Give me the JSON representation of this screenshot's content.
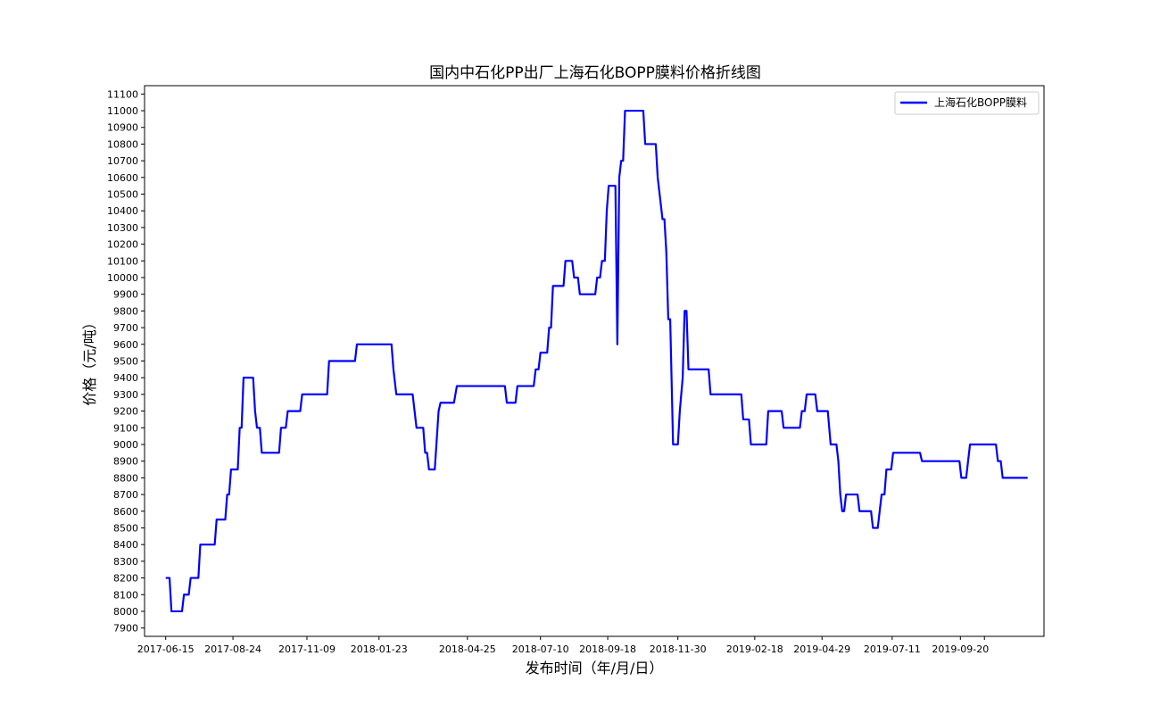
{
  "chart_data": {
    "type": "line",
    "title": "国内中石化PP出厂上海石化BOPP膜料价格折线图",
    "xlabel": "发布时间（年/月/日）",
    "ylabel": "价格（元/吨）",
    "x_ticks": [
      "2017-06-15",
      "2017-08-24",
      "2017-11-09",
      "2018-01-23",
      "2018-04-25",
      "2018-07-10",
      "2018-09-18",
      "2018-11-30",
      "2019-02-18",
      "2019-04-29",
      "2019-07-11",
      "2019-09-20",
      ""
    ],
    "xlim": [
      "2017-05-24",
      "2019-12-16"
    ],
    "ylim": [
      7850,
      11150
    ],
    "y_ticks": [
      7900,
      8000,
      8100,
      8200,
      8300,
      8400,
      8500,
      8600,
      8700,
      8800,
      8900,
      9000,
      9100,
      9200,
      9300,
      9400,
      9500,
      9600,
      9700,
      9800,
      9900,
      10000,
      10100,
      10200,
      10300,
      10400,
      10500,
      10600,
      10700,
      10800,
      10900,
      11000,
      11100
    ],
    "grid": false,
    "legend_position": "upper right",
    "series": [
      {
        "name": "上海石化BOPP膜料",
        "color": "#0000ff",
        "points": [
          [
            "2017-06-15",
            8200
          ],
          [
            "2017-06-19",
            8200
          ],
          [
            "2017-06-21",
            8000
          ],
          [
            "2017-07-02",
            8000
          ],
          [
            "2017-07-04",
            8100
          ],
          [
            "2017-07-09",
            8100
          ],
          [
            "2017-07-11",
            8200
          ],
          [
            "2017-07-19",
            8200
          ],
          [
            "2017-07-21",
            8400
          ],
          [
            "2017-08-05",
            8400
          ],
          [
            "2017-08-07",
            8550
          ],
          [
            "2017-08-16",
            8550
          ],
          [
            "2017-08-18",
            8700
          ],
          [
            "2017-08-20",
            8700
          ],
          [
            "2017-08-22",
            8850
          ],
          [
            "2017-08-29",
            8850
          ],
          [
            "2017-08-31",
            9100
          ],
          [
            "2017-09-02",
            9100
          ],
          [
            "2017-09-04",
            9400
          ],
          [
            "2017-09-14",
            9400
          ],
          [
            "2017-09-16",
            9200
          ],
          [
            "2017-09-18",
            9100
          ],
          [
            "2017-09-21",
            9100
          ],
          [
            "2017-09-23",
            8950
          ],
          [
            "2017-10-11",
            8950
          ],
          [
            "2017-10-13",
            9100
          ],
          [
            "2017-10-18",
            9100
          ],
          [
            "2017-10-20",
            9200
          ],
          [
            "2017-11-02",
            9200
          ],
          [
            "2017-11-04",
            9300
          ],
          [
            "2017-11-30",
            9300
          ],
          [
            "2017-12-02",
            9500
          ],
          [
            "2017-12-29",
            9500
          ],
          [
            "2017-12-31",
            9600
          ],
          [
            "2018-02-05",
            9600
          ],
          [
            "2018-02-07",
            9450
          ],
          [
            "2018-02-10",
            9300
          ],
          [
            "2018-02-27",
            9300
          ],
          [
            "2018-03-03",
            9100
          ],
          [
            "2018-03-10",
            9100
          ],
          [
            "2018-03-12",
            8950
          ],
          [
            "2018-03-14",
            8950
          ],
          [
            "2018-03-16",
            8850
          ],
          [
            "2018-03-22",
            8850
          ],
          [
            "2018-03-26",
            9200
          ],
          [
            "2018-03-28",
            9250
          ],
          [
            "2018-04-11",
            9250
          ],
          [
            "2018-04-14",
            9350
          ],
          [
            "2018-06-03",
            9350
          ],
          [
            "2018-06-05",
            9250
          ],
          [
            "2018-06-14",
            9250
          ],
          [
            "2018-06-16",
            9350
          ],
          [
            "2018-07-03",
            9350
          ],
          [
            "2018-07-05",
            9450
          ],
          [
            "2018-07-08",
            9450
          ],
          [
            "2018-07-10",
            9550
          ],
          [
            "2018-07-17",
            9550
          ],
          [
            "2018-07-19",
            9700
          ],
          [
            "2018-07-21",
            9700
          ],
          [
            "2018-07-23",
            9950
          ],
          [
            "2018-08-03",
            9950
          ],
          [
            "2018-08-05",
            10100
          ],
          [
            "2018-08-12",
            10100
          ],
          [
            "2018-08-14",
            10000
          ],
          [
            "2018-08-18",
            10000
          ],
          [
            "2018-08-20",
            9900
          ],
          [
            "2018-09-05",
            9900
          ],
          [
            "2018-09-07",
            10000
          ],
          [
            "2018-09-10",
            10000
          ],
          [
            "2018-09-12",
            10100
          ],
          [
            "2018-09-15",
            10100
          ],
          [
            "2018-09-17",
            10400
          ],
          [
            "2018-09-19",
            10550
          ],
          [
            "2018-09-26",
            10550
          ],
          [
            "2018-09-28",
            9600
          ],
          [
            "2018-09-30",
            10600
          ],
          [
            "2018-10-02",
            10700
          ],
          [
            "2018-10-04",
            10700
          ],
          [
            "2018-10-06",
            11000
          ],
          [
            "2018-10-25",
            11000
          ],
          [
            "2018-10-27",
            10800
          ],
          [
            "2018-11-07",
            10800
          ],
          [
            "2018-11-09",
            10600
          ],
          [
            "2018-11-11",
            10500
          ],
          [
            "2018-11-14",
            10350
          ],
          [
            "2018-11-16",
            10350
          ],
          [
            "2018-11-18",
            10150
          ],
          [
            "2018-11-20",
            9750
          ],
          [
            "2018-11-22",
            9750
          ],
          [
            "2018-11-25",
            9000
          ],
          [
            "2018-11-30",
            9000
          ],
          [
            "2018-12-02",
            9200
          ],
          [
            "2018-12-05",
            9400
          ],
          [
            "2018-12-07",
            9800
          ],
          [
            "2018-12-09",
            9800
          ],
          [
            "2018-12-11",
            9450
          ],
          [
            "2019-01-01",
            9450
          ],
          [
            "2019-01-03",
            9300
          ],
          [
            "2019-02-04",
            9300
          ],
          [
            "2019-02-06",
            9150
          ],
          [
            "2019-02-12",
            9150
          ],
          [
            "2019-02-14",
            9000
          ],
          [
            "2019-03-02",
            9000
          ],
          [
            "2019-03-04",
            9200
          ],
          [
            "2019-03-18",
            9200
          ],
          [
            "2019-03-20",
            9100
          ],
          [
            "2019-04-06",
            9100
          ],
          [
            "2019-04-08",
            9200
          ],
          [
            "2019-04-11",
            9200
          ],
          [
            "2019-04-13",
            9300
          ],
          [
            "2019-04-22",
            9300
          ],
          [
            "2019-04-24",
            9200
          ],
          [
            "2019-05-05",
            9200
          ],
          [
            "2019-05-08",
            9000
          ],
          [
            "2019-05-14",
            9000
          ],
          [
            "2019-05-16",
            8900
          ],
          [
            "2019-05-18",
            8700
          ],
          [
            "2019-05-20",
            8600
          ],
          [
            "2019-05-22",
            8600
          ],
          [
            "2019-05-24",
            8700
          ],
          [
            "2019-06-05",
            8700
          ],
          [
            "2019-06-07",
            8600
          ],
          [
            "2019-06-19",
            8600
          ],
          [
            "2019-06-21",
            8500
          ],
          [
            "2019-06-26",
            8500
          ],
          [
            "2019-06-28",
            8600
          ],
          [
            "2019-06-30",
            8700
          ],
          [
            "2019-07-03",
            8700
          ],
          [
            "2019-07-05",
            8850
          ],
          [
            "2019-07-10",
            8850
          ],
          [
            "2019-07-12",
            8950
          ],
          [
            "2019-08-09",
            8950
          ],
          [
            "2019-08-11",
            8900
          ],
          [
            "2019-09-19",
            8900
          ],
          [
            "2019-09-21",
            8800
          ],
          [
            "2019-09-26",
            8800
          ],
          [
            "2019-09-28",
            8900
          ],
          [
            "2019-09-30",
            9000
          ],
          [
            "2019-10-27",
            9000
          ],
          [
            "2019-10-29",
            8900
          ],
          [
            "2019-11-01",
            8900
          ],
          [
            "2019-11-03",
            8800
          ],
          [
            "2019-11-29",
            8800
          ]
        ]
      }
    ]
  }
}
